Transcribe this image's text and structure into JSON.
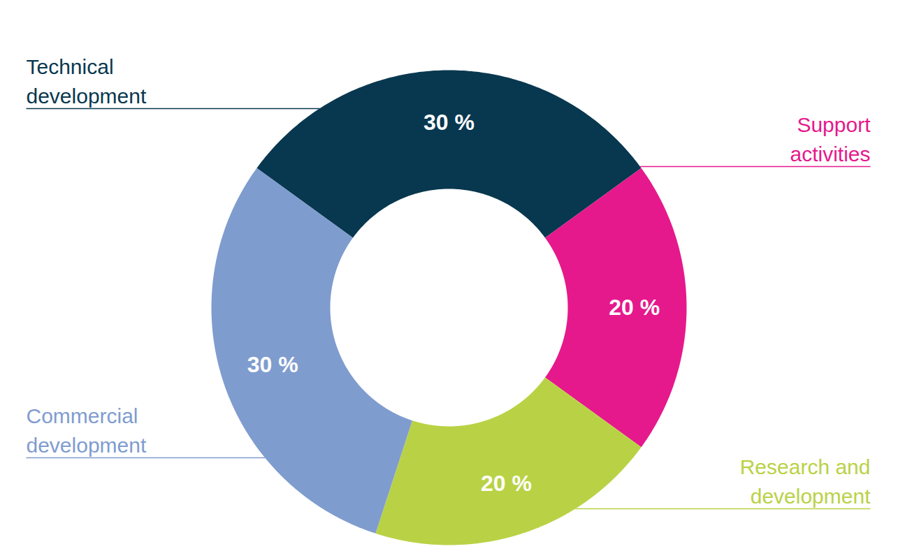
{
  "chart_data": {
    "type": "pie",
    "categories": [
      "Technical\ndevelopment",
      "Support\nactivities",
      "Research and\ndevelopment",
      "Commercial\ndevelopment"
    ],
    "values": [
      30,
      20,
      20,
      30
    ],
    "value_labels": [
      "30 %",
      "20 %",
      "20 %",
      "30 %"
    ],
    "colors": [
      "#08384f",
      "#e5198c",
      "#b9d245",
      "#7f9ccf"
    ],
    "data_labels": true
  }
}
